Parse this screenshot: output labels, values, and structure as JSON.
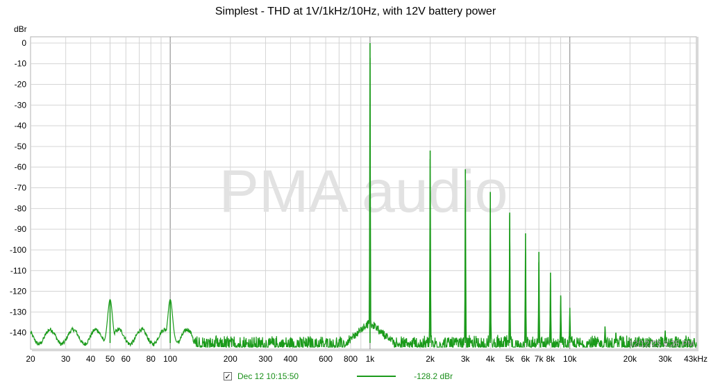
{
  "chart_data": {
    "type": "line",
    "title": "Simplest - THD at 1V/1kHz/10Hz, with 12V battery power",
    "ylabel": "dBr",
    "xscale": "log",
    "xlim": [
      20,
      43000
    ],
    "ylim": [
      -148,
      3
    ],
    "grid": true,
    "y_ticks": [
      0,
      -10,
      -20,
      -30,
      -40,
      -50,
      -60,
      -70,
      -80,
      -90,
      -100,
      -110,
      -120,
      -130,
      -140
    ],
    "y_tick_labels": [
      "0",
      "-10",
      "-20",
      "-30",
      "-40",
      "-50",
      "-60",
      "-70",
      "-80",
      "-90",
      "-100",
      "-110",
      "-120",
      "-130",
      "-140"
    ],
    "x_ticks": [
      20,
      30,
      40,
      50,
      60,
      80,
      100,
      200,
      300,
      400,
      600,
      800,
      1000,
      2000,
      3000,
      4000,
      5000,
      6000,
      7000,
      8000,
      10000,
      20000,
      30000,
      43000
    ],
    "x_tick_labels": [
      "20",
      "30",
      "40",
      "50",
      "60",
      "80",
      "100",
      "200",
      "300",
      "400",
      "600",
      "800",
      "1k",
      "2k",
      "3k",
      "4k",
      "5k",
      "6k",
      "7k",
      "8k",
      "10k",
      "20k",
      "30k",
      "43kHz"
    ],
    "noise_floor_db": -145,
    "series": [
      {
        "color": "#1a9a1a",
        "peaks": [
          {
            "x": 50,
            "y": -124
          },
          {
            "x": 100,
            "y": -124
          },
          {
            "x": 1000,
            "y": 0
          },
          {
            "x": 2000,
            "y": -52
          },
          {
            "x": 3000,
            "y": -61
          },
          {
            "x": 4000,
            "y": -72
          },
          {
            "x": 5000,
            "y": -82
          },
          {
            "x": 6000,
            "y": -92
          },
          {
            "x": 7000,
            "y": -101
          },
          {
            "x": 8000,
            "y": -111
          },
          {
            "x": 9000,
            "y": -122
          },
          {
            "x": 10000,
            "y": -128
          },
          {
            "x": 15000,
            "y": -137
          },
          {
            "x": 17000,
            "y": -140
          },
          {
            "x": 30000,
            "y": -139
          }
        ]
      }
    ],
    "watermark": "PMA audio",
    "timestamp": "12/12/23 6:25 PM",
    "legend": {
      "checked": true,
      "name": "Dec 12 10:15:50",
      "value": "-128.2 dBr"
    }
  }
}
